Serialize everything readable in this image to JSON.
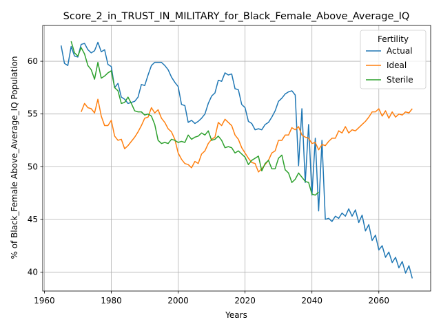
{
  "chart_data": {
    "type": "line",
    "title": "Score_2_in_TRUST_IN_MILITARY_for_Black_Female_Above_Average_IQ",
    "xlabel": "Years",
    "ylabel": "% of Black_Female Above_Average_IQ Population",
    "xlim": [
      1959.5,
      2075.5
    ],
    "ylim": [
      38.2,
      63.4
    ],
    "xticks": [
      1960,
      1980,
      2000,
      2020,
      2040,
      2060
    ],
    "yticks": [
      40,
      45,
      50,
      55,
      60
    ],
    "grid": true,
    "legend": {
      "title": "Fertility",
      "placement": "top-right"
    },
    "series": [
      {
        "name": "Actual",
        "color": "#1f77b4",
        "points": [
          [
            1965,
            61.5
          ],
          [
            1966,
            59.8
          ],
          [
            1967,
            59.6
          ],
          [
            1968,
            61.4
          ],
          [
            1969,
            60.5
          ],
          [
            1970,
            60.4
          ],
          [
            1971,
            61.6
          ],
          [
            1972,
            61.7
          ],
          [
            1973,
            61.1
          ],
          [
            1974,
            60.8
          ],
          [
            1975,
            61.0
          ],
          [
            1976,
            61.8
          ],
          [
            1977,
            60.9
          ],
          [
            1978,
            61.1
          ],
          [
            1979,
            59.7
          ],
          [
            1980,
            59.5
          ],
          [
            1981,
            57.5
          ],
          [
            1982,
            57.9
          ],
          [
            1983,
            56.6
          ],
          [
            1984,
            56.4
          ],
          [
            1985,
            56.0
          ],
          [
            1986,
            56.1
          ],
          [
            1987,
            56.2
          ],
          [
            1988,
            56.6
          ],
          [
            1989,
            57.8
          ],
          [
            1990,
            57.7
          ],
          [
            1991,
            58.7
          ],
          [
            1992,
            59.6
          ],
          [
            1993,
            59.9
          ],
          [
            1994,
            59.9
          ],
          [
            1995,
            59.9
          ],
          [
            1996,
            59.6
          ],
          [
            1997,
            59.2
          ],
          [
            1998,
            58.5
          ],
          [
            1999,
            58.0
          ],
          [
            2000,
            57.6
          ],
          [
            2001,
            55.9
          ],
          [
            2002,
            55.8
          ],
          [
            2003,
            54.2
          ],
          [
            2004,
            54.4
          ],
          [
            2005,
            54.1
          ],
          [
            2006,
            54.3
          ],
          [
            2007,
            54.6
          ],
          [
            2008,
            55.0
          ],
          [
            2009,
            56.0
          ],
          [
            2010,
            56.7
          ],
          [
            2011,
            57.0
          ],
          [
            2012,
            58.2
          ],
          [
            2013,
            58.1
          ],
          [
            2014,
            58.9
          ],
          [
            2015,
            58.7
          ],
          [
            2016,
            58.8
          ],
          [
            2017,
            57.4
          ],
          [
            2018,
            57.3
          ],
          [
            2019,
            55.9
          ],
          [
            2020,
            55.6
          ],
          [
            2021,
            54.3
          ],
          [
            2022,
            54.1
          ],
          [
            2023,
            53.5
          ],
          [
            2024,
            53.6
          ],
          [
            2025,
            53.5
          ],
          [
            2026,
            54.0
          ],
          [
            2027,
            54.2
          ],
          [
            2028,
            54.7
          ],
          [
            2029,
            55.3
          ],
          [
            2030,
            56.2
          ],
          [
            2031,
            56.5
          ],
          [
            2032,
            56.9
          ],
          [
            2033,
            57.1
          ],
          [
            2034,
            57.2
          ],
          [
            2035,
            56.8
          ],
          [
            2036,
            50.1
          ],
          [
            2037,
            55.5
          ],
          [
            2038,
            48.5
          ],
          [
            2039,
            54.0
          ],
          [
            2040,
            47.3
          ],
          [
            2041,
            52.7
          ],
          [
            2042,
            45.8
          ],
          [
            2043,
            52.5
          ],
          [
            2044,
            45.0
          ],
          [
            2045,
            45.1
          ],
          [
            2046,
            44.8
          ],
          [
            2047,
            45.3
          ],
          [
            2048,
            45.1
          ],
          [
            2049,
            45.6
          ],
          [
            2050,
            45.3
          ],
          [
            2051,
            46.0
          ],
          [
            2052,
            45.3
          ],
          [
            2053,
            45.9
          ],
          [
            2054,
            44.7
          ],
          [
            2055,
            45.4
          ],
          [
            2056,
            43.9
          ],
          [
            2057,
            44.5
          ],
          [
            2058,
            43.0
          ],
          [
            2059,
            43.5
          ],
          [
            2060,
            42.1
          ],
          [
            2061,
            42.5
          ],
          [
            2062,
            41.4
          ],
          [
            2063,
            41.9
          ],
          [
            2064,
            40.9
          ],
          [
            2065,
            41.4
          ],
          [
            2066,
            40.4
          ],
          [
            2067,
            41.0
          ],
          [
            2068,
            39.9
          ],
          [
            2069,
            40.6
          ],
          [
            2070,
            39.4
          ]
        ]
      },
      {
        "name": "Ideal",
        "color": "#ff7f0e",
        "points": [
          [
            1971,
            55.2
          ],
          [
            1972,
            56.0
          ],
          [
            1973,
            55.6
          ],
          [
            1974,
            55.5
          ],
          [
            1975,
            55.1
          ],
          [
            1976,
            56.4
          ],
          [
            1977,
            54.8
          ],
          [
            1978,
            53.9
          ],
          [
            1979,
            53.9
          ],
          [
            1980,
            54.4
          ],
          [
            1981,
            52.9
          ],
          [
            1982,
            52.5
          ],
          [
            1983,
            52.6
          ],
          [
            1984,
            51.7
          ],
          [
            1985,
            52.0
          ],
          [
            1986,
            52.4
          ],
          [
            1987,
            52.8
          ],
          [
            1988,
            53.3
          ],
          [
            1989,
            53.9
          ],
          [
            1990,
            54.6
          ],
          [
            1991,
            54.7
          ],
          [
            1992,
            55.6
          ],
          [
            1993,
            55.1
          ],
          [
            1994,
            55.4
          ],
          [
            1995,
            54.6
          ],
          [
            1996,
            54.2
          ],
          [
            1997,
            53.6
          ],
          [
            1998,
            53.3
          ],
          [
            1999,
            52.6
          ],
          [
            2000,
            51.3
          ],
          [
            2001,
            50.7
          ],
          [
            2002,
            50.3
          ],
          [
            2003,
            50.2
          ],
          [
            2004,
            49.9
          ],
          [
            2005,
            50.5
          ],
          [
            2006,
            50.3
          ],
          [
            2007,
            51.2
          ],
          [
            2008,
            51.5
          ],
          [
            2009,
            52.2
          ],
          [
            2010,
            52.6
          ],
          [
            2011,
            52.8
          ],
          [
            2012,
            54.2
          ],
          [
            2013,
            53.9
          ],
          [
            2014,
            54.5
          ],
          [
            2015,
            54.2
          ],
          [
            2016,
            53.9
          ],
          [
            2017,
            53.0
          ],
          [
            2018,
            52.6
          ],
          [
            2019,
            51.8
          ],
          [
            2020,
            51.3
          ],
          [
            2021,
            50.8
          ],
          [
            2022,
            50.4
          ],
          [
            2023,
            50.3
          ],
          [
            2024,
            49.5
          ],
          [
            2025,
            49.8
          ],
          [
            2026,
            50.2
          ],
          [
            2027,
            50.6
          ],
          [
            2028,
            51.3
          ],
          [
            2029,
            51.5
          ],
          [
            2030,
            52.5
          ],
          [
            2031,
            52.5
          ],
          [
            2032,
            53.0
          ],
          [
            2033,
            53.0
          ],
          [
            2034,
            53.7
          ],
          [
            2035,
            53.5
          ],
          [
            2036,
            53.8
          ],
          [
            2037,
            53.0
          ],
          [
            2038,
            52.8
          ],
          [
            2039,
            52.7
          ],
          [
            2040,
            52.2
          ],
          [
            2041,
            52.3
          ],
          [
            2042,
            51.6
          ],
          [
            2043,
            52.1
          ],
          [
            2044,
            52.0
          ],
          [
            2045,
            52.4
          ],
          [
            2046,
            52.7
          ],
          [
            2047,
            52.7
          ],
          [
            2048,
            53.4
          ],
          [
            2049,
            53.2
          ],
          [
            2050,
            53.8
          ],
          [
            2051,
            53.2
          ],
          [
            2052,
            53.5
          ],
          [
            2053,
            53.4
          ],
          [
            2054,
            53.7
          ],
          [
            2055,
            54.0
          ],
          [
            2056,
            54.3
          ],
          [
            2057,
            54.7
          ],
          [
            2058,
            55.2
          ],
          [
            2059,
            55.2
          ],
          [
            2060,
            55.5
          ],
          [
            2061,
            54.8
          ],
          [
            2062,
            55.3
          ],
          [
            2063,
            54.6
          ],
          [
            2064,
            55.2
          ],
          [
            2065,
            54.7
          ],
          [
            2066,
            55.0
          ],
          [
            2067,
            54.9
          ],
          [
            2068,
            55.2
          ],
          [
            2069,
            55.1
          ],
          [
            2070,
            55.5
          ]
        ]
      },
      {
        "name": "Sterile",
        "color": "#2ca02c",
        "points": [
          [
            1968,
            61.9
          ],
          [
            1969,
            60.8
          ],
          [
            1970,
            60.5
          ],
          [
            1971,
            61.3
          ],
          [
            1972,
            60.7
          ],
          [
            1973,
            59.6
          ],
          [
            1974,
            59.2
          ],
          [
            1975,
            58.3
          ],
          [
            1976,
            59.9
          ],
          [
            1977,
            58.4
          ],
          [
            1978,
            58.6
          ],
          [
            1979,
            58.9
          ],
          [
            1980,
            59.1
          ],
          [
            1981,
            57.5
          ],
          [
            1982,
            57.2
          ],
          [
            1983,
            56.0
          ],
          [
            1984,
            56.1
          ],
          [
            1985,
            56.6
          ],
          [
            1986,
            56.0
          ],
          [
            1987,
            55.3
          ],
          [
            1988,
            55.2
          ],
          [
            1989,
            55.2
          ],
          [
            1990,
            54.9
          ],
          [
            1991,
            55.0
          ],
          [
            1992,
            54.8
          ],
          [
            1993,
            54.0
          ],
          [
            1994,
            52.5
          ],
          [
            1995,
            52.2
          ],
          [
            1996,
            52.3
          ],
          [
            1997,
            52.2
          ],
          [
            1998,
            52.6
          ],
          [
            1999,
            52.5
          ],
          [
            2000,
            52.3
          ],
          [
            2001,
            52.4
          ],
          [
            2002,
            52.3
          ],
          [
            2003,
            53.0
          ],
          [
            2004,
            52.6
          ],
          [
            2005,
            52.8
          ],
          [
            2006,
            52.9
          ],
          [
            2007,
            53.2
          ],
          [
            2008,
            53.0
          ],
          [
            2009,
            53.4
          ],
          [
            2010,
            52.5
          ],
          [
            2011,
            52.6
          ],
          [
            2012,
            52.9
          ],
          [
            2013,
            52.5
          ],
          [
            2014,
            51.8
          ],
          [
            2015,
            51.9
          ],
          [
            2016,
            51.8
          ],
          [
            2017,
            51.3
          ],
          [
            2018,
            51.5
          ],
          [
            2019,
            51.2
          ],
          [
            2020,
            50.9
          ],
          [
            2021,
            50.2
          ],
          [
            2022,
            50.6
          ],
          [
            2023,
            50.8
          ],
          [
            2024,
            51.0
          ],
          [
            2025,
            49.6
          ],
          [
            2026,
            50.3
          ],
          [
            2027,
            50.6
          ],
          [
            2028,
            49.8
          ],
          [
            2029,
            49.8
          ],
          [
            2030,
            50.8
          ],
          [
            2031,
            51.1
          ],
          [
            2032,
            49.7
          ],
          [
            2033,
            49.4
          ],
          [
            2034,
            48.5
          ],
          [
            2035,
            48.8
          ],
          [
            2036,
            49.4
          ],
          [
            2037,
            49.0
          ],
          [
            2038,
            48.6
          ],
          [
            2039,
            48.5
          ],
          [
            2040,
            47.4
          ],
          [
            2041,
            47.3
          ],
          [
            2042,
            47.6
          ]
        ]
      }
    ]
  }
}
